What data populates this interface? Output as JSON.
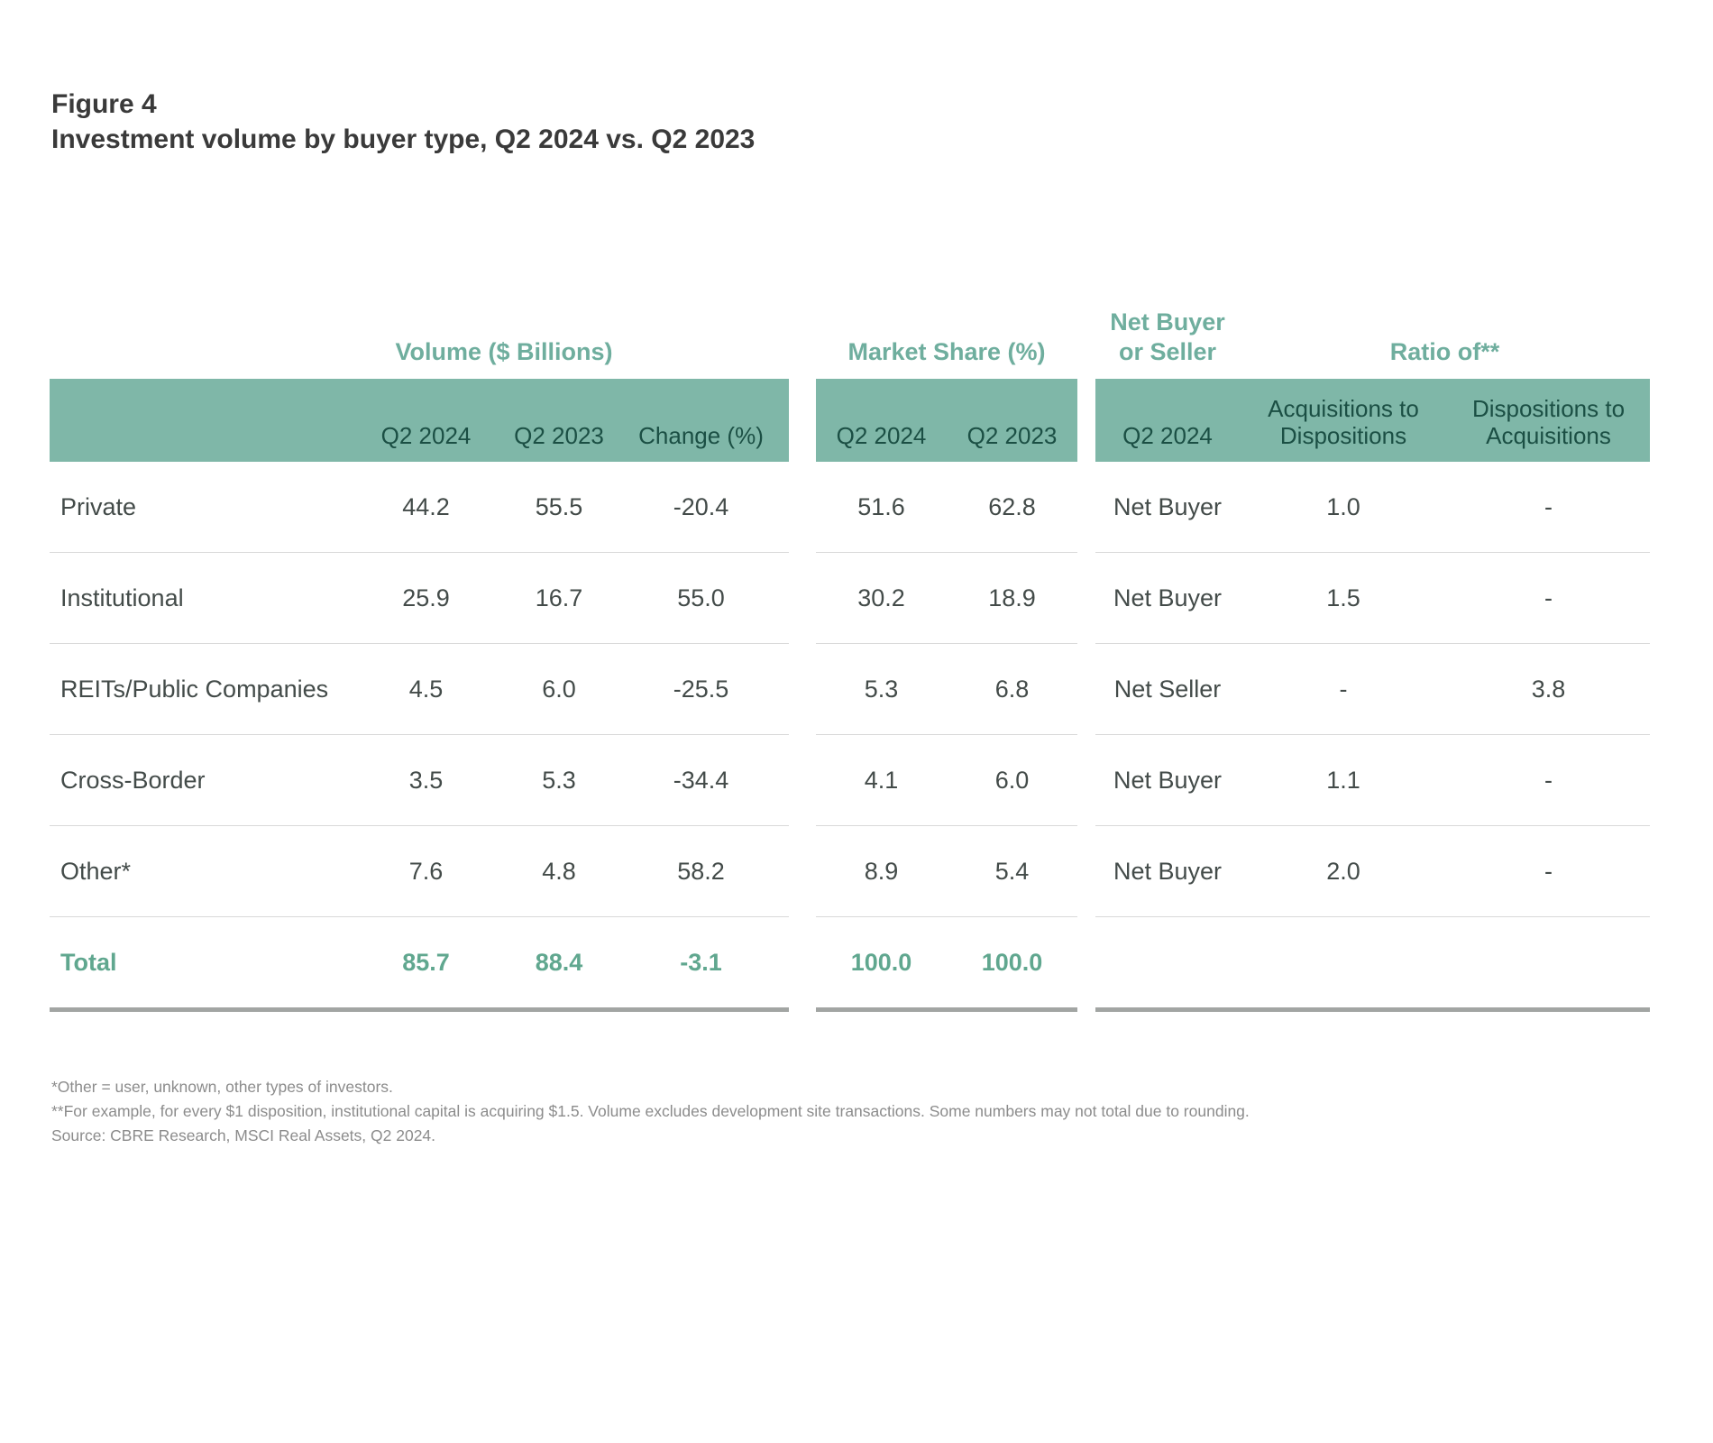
{
  "figure": {
    "label": "Figure 4",
    "title": "Investment volume by buyer type, Q2 2024 vs. Q2 2023"
  },
  "chart_data": {
    "type": "table",
    "title": "Investment volume by buyer type, Q2 2024 vs. Q2 2023",
    "column_groups": [
      {
        "label": "Volume ($ Billions)",
        "columns": [
          "Q2 2024",
          "Q2 2023",
          "Change (%)"
        ]
      },
      {
        "label": "Market Share (%)",
        "columns": [
          "Q2 2024",
          "Q2 2023"
        ]
      },
      {
        "label": "Net Buyer\nor Seller",
        "columns": [
          "Q2 2024"
        ]
      },
      {
        "label": "Ratio of**",
        "columns": [
          "Acquisitions to\nDispositions",
          "Dispositions to\nAcquisitions"
        ]
      }
    ],
    "rows": [
      {
        "label": "Private",
        "volume": [
          "44.2",
          "55.5",
          "-20.4"
        ],
        "share": [
          "51.6",
          "62.8"
        ],
        "net": "Net Buyer",
        "ratio": [
          "1.0",
          "-"
        ]
      },
      {
        "label": "Institutional",
        "volume": [
          "25.9",
          "16.7",
          "55.0"
        ],
        "share": [
          "30.2",
          "18.9"
        ],
        "net": "Net Buyer",
        "ratio": [
          "1.5",
          "-"
        ]
      },
      {
        "label": "REITs/Public Companies",
        "volume": [
          "4.5",
          "6.0",
          "-25.5"
        ],
        "share": [
          "5.3",
          "6.8"
        ],
        "net": "Net Seller",
        "ratio": [
          "-",
          "3.8"
        ]
      },
      {
        "label": "Cross-Border",
        "volume": [
          "3.5",
          "5.3",
          "-34.4"
        ],
        "share": [
          "4.1",
          "6.0"
        ],
        "net": "Net Buyer",
        "ratio": [
          "1.1",
          "-"
        ]
      },
      {
        "label": "Other*",
        "volume": [
          "7.6",
          "4.8",
          "58.2"
        ],
        "share": [
          "8.9",
          "5.4"
        ],
        "net": "Net Buyer",
        "ratio": [
          "2.0",
          "-"
        ]
      }
    ],
    "total": {
      "label": "Total",
      "volume": [
        "85.7",
        "88.4",
        "-3.1"
      ],
      "share": [
        "100.0",
        "100.0"
      ]
    }
  },
  "footnotes": [
    "*Other = user, unknown, other types of investors.",
    "**For example, for every $1 disposition, institutional capital is acquiring $1.5. Volume excludes development site transactions. Some numbers may not total due to rounding.",
    "Source: CBRE Research, MSCI Real Assets, Q2 2024."
  ],
  "colors": {
    "header_band": "#7fb7a8",
    "header_band_text": "#1b4f44",
    "group_header_text": "#6fae9e",
    "body_text": "#434b49",
    "total_text": "#60a78f",
    "row_separator": "#d9d9d9",
    "total_separator": "#a2a5a3",
    "title_text": "#3a3a3a",
    "footnote_text": "#8c8c8c"
  }
}
